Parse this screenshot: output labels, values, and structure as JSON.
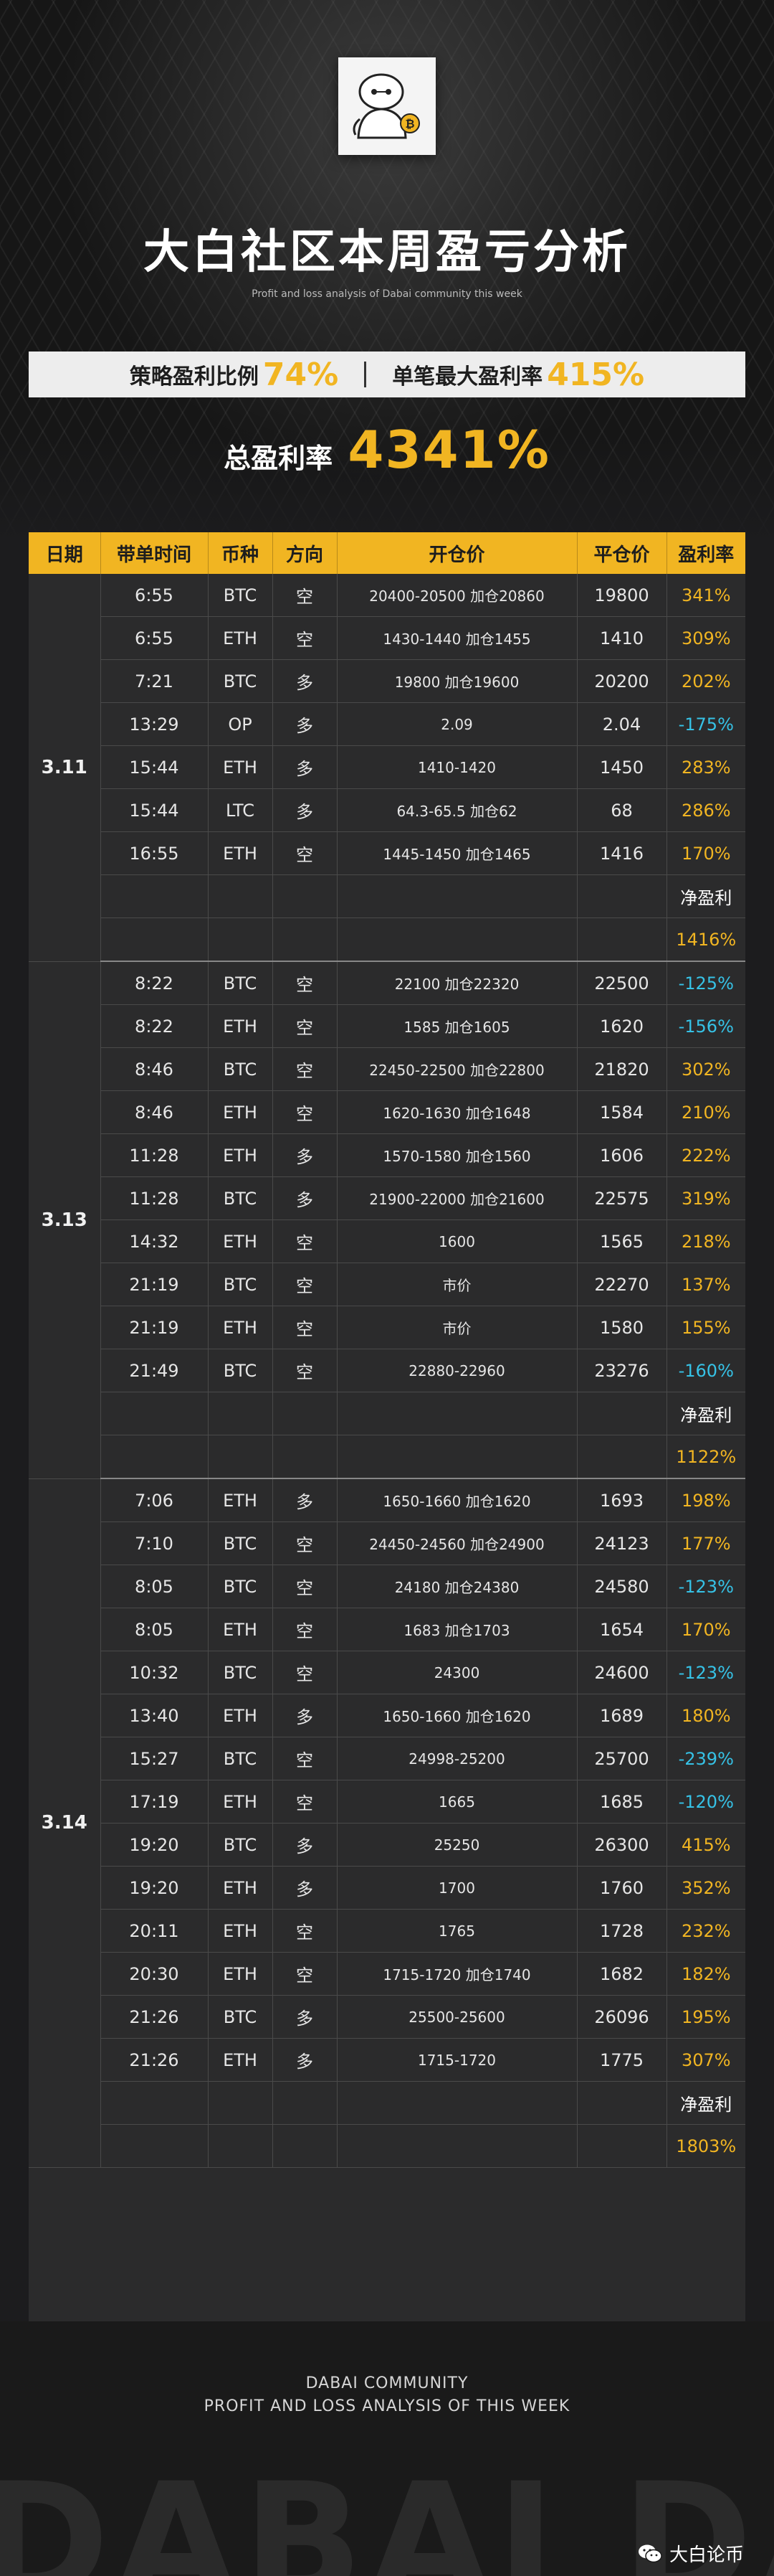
{
  "header": {
    "title": "大白社区本周盈亏分析",
    "subtitle": "Profit and loss analysis of Dabai community this week",
    "stat1_label": "策略盈利比例",
    "stat1_value": "74%",
    "stat2_label": "单笔最大盈利率",
    "stat2_value": "415%",
    "total_label": "总盈利率",
    "total_value": "4341%"
  },
  "table": {
    "columns": [
      "日期",
      "带单时间",
      "币种",
      "方向",
      "开仓价",
      "平仓价",
      "盈利率"
    ],
    "net_label": "净盈利",
    "groups": [
      {
        "date": "3.11",
        "rows": [
          [
            "6:55",
            "BTC",
            "空",
            "20400-20500  加仓20860",
            "19800",
            "341%"
          ],
          [
            "6:55",
            "ETH",
            "空",
            "1430-1440  加仓1455",
            "1410",
            "309%"
          ],
          [
            "7:21",
            "BTC",
            "多",
            "19800  加仓19600",
            "20200",
            "202%"
          ],
          [
            "13:29",
            "OP",
            "多",
            "2.09",
            "2.04",
            "-175%"
          ],
          [
            "15:44",
            "ETH",
            "多",
            "1410-1420",
            "1450",
            "283%"
          ],
          [
            "15:44",
            "LTC",
            "多",
            "64.3-65.5  加仓62",
            "68",
            "286%"
          ],
          [
            "16:55",
            "ETH",
            "空",
            "1445-1450  加仓1465",
            "1416",
            "170%"
          ]
        ],
        "net_value": "1416%"
      },
      {
        "date": "3.13",
        "rows": [
          [
            "8:22",
            "BTC",
            "空",
            "22100  加仓22320",
            "22500",
            "-125%"
          ],
          [
            "8:22",
            "ETH",
            "空",
            "1585  加仓1605",
            "1620",
            "-156%"
          ],
          [
            "8:46",
            "BTC",
            "空",
            "22450-22500  加仓22800",
            "21820",
            "302%"
          ],
          [
            "8:46",
            "ETH",
            "空",
            "1620-1630  加仓1648",
            "1584",
            "210%"
          ],
          [
            "11:28",
            "ETH",
            "多",
            "1570-1580  加仓1560",
            "1606",
            "222%"
          ],
          [
            "11:28",
            "BTC",
            "多",
            "21900-22000  加仓21600",
            "22575",
            "319%"
          ],
          [
            "14:32",
            "ETH",
            "空",
            "1600",
            "1565",
            "218%"
          ],
          [
            "21:19",
            "BTC",
            "空",
            "市价",
            "22270",
            "137%"
          ],
          [
            "21:19",
            "ETH",
            "空",
            "市价",
            "1580",
            "155%"
          ],
          [
            "21:49",
            "BTC",
            "空",
            "22880-22960",
            "23276",
            "-160%"
          ]
        ],
        "net_value": "1122%"
      },
      {
        "date": "3.14",
        "rows": [
          [
            "7:06",
            "ETH",
            "多",
            "1650-1660  加仓1620",
            "1693",
            "198%"
          ],
          [
            "7:10",
            "BTC",
            "空",
            "24450-24560  加仓24900",
            "24123",
            "177%"
          ],
          [
            "8:05",
            "BTC",
            "空",
            "24180  加仓24380",
            "24580",
            "-123%"
          ],
          [
            "8:05",
            "ETH",
            "空",
            "1683  加仓1703",
            "1654",
            "170%"
          ],
          [
            "10:32",
            "BTC",
            "空",
            "24300",
            "24600",
            "-123%"
          ],
          [
            "13:40",
            "ETH",
            "多",
            "1650-1660  加仓1620",
            "1689",
            "180%"
          ],
          [
            "15:27",
            "BTC",
            "空",
            "24998-25200",
            "25700",
            "-239%"
          ],
          [
            "17:19",
            "ETH",
            "空",
            "1665",
            "1685",
            "-120%"
          ],
          [
            "19:20",
            "BTC",
            "多",
            "25250",
            "26300",
            "415%"
          ],
          [
            "19:20",
            "ETH",
            "多",
            "1700",
            "1760",
            "352%"
          ],
          [
            "20:11",
            "ETH",
            "空",
            "1765",
            "1728",
            "232%"
          ],
          [
            "20:30",
            "ETH",
            "空",
            "1715-1720  加仓1740",
            "1682",
            "182%"
          ],
          [
            "21:26",
            "BTC",
            "多",
            "25500-25600",
            "26096",
            "195%"
          ],
          [
            "21:26",
            "ETH",
            "多",
            "1715-1720",
            "1775",
            "307%"
          ]
        ],
        "net_value": "1803%"
      }
    ]
  },
  "footer": {
    "line1": "DABAI COMMUNITY",
    "line2": "PROFIT AND LOSS ANALYSIS OF THIS WEEK",
    "watermark": "DABAI DABAI",
    "wechat_name": "大白论币"
  },
  "colors": {
    "accent": "#f1b522",
    "negative": "#36c2e6",
    "background": "#1c1c1e"
  },
  "icons": {
    "logo": "baymax-mascot-logo",
    "wechat": "wechat-icon"
  }
}
